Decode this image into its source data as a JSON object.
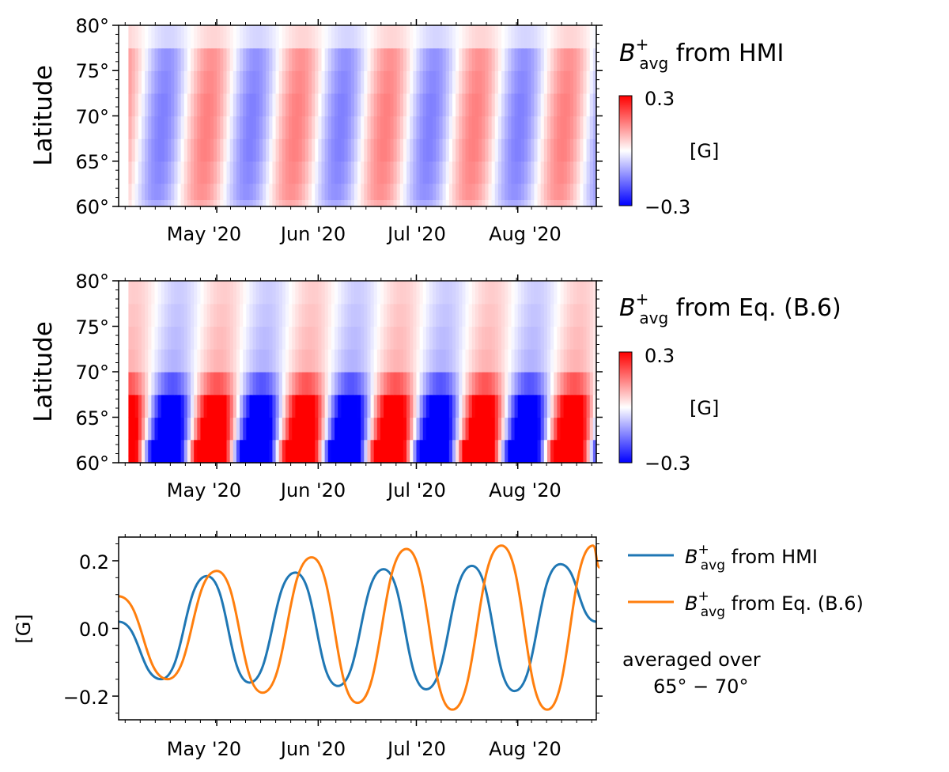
{
  "colors": {
    "hmi_line": "#1f77b4",
    "eq_line": "#ff7f0e",
    "cmap_negative": "#0000ff",
    "cmap_zero": "#ffffff",
    "cmap_positive": "#ff0000"
  },
  "chart_data": [
    {
      "type": "heatmap",
      "panel": "top",
      "title_symbol": "B",
      "title_sup": "+",
      "title_sub": "avg",
      "title_rest": " from HMI",
      "ylabel": "Latitude",
      "yticks": [
        "60°",
        "65°",
        "70°",
        "75°",
        "80°"
      ],
      "ylim": [
        60,
        80
      ],
      "xticks": [
        "May '20",
        "Jun '20",
        "Jul '20",
        "Aug '20"
      ],
      "xlim": [
        "2020-04-01",
        "2020-08-25"
      ],
      "colorbar": {
        "min": -0.3,
        "max": 0.3,
        "max_label": "0.3",
        "min_label": "−0.3",
        "unit": "[G]",
        "cmap": "bwr"
      },
      "lat_rows": [
        60.2,
        61.3,
        63.8,
        66.2,
        68.8,
        71.2,
        73.8,
        76.2,
        78.8
      ],
      "row_amplitude": [
        0.1,
        0.13,
        0.14,
        0.15,
        0.15,
        0.15,
        0.14,
        0.13,
        0.05
      ],
      "phase_shift_per_degree_days": 0.2,
      "period_days": 27.3,
      "first_minimum": "2020-04-12",
      "first_row_start": "2020-04-04"
    },
    {
      "type": "heatmap",
      "panel": "middle",
      "title_symbol": "B",
      "title_sup": "+",
      "title_sub": "avg",
      "title_rest": " from Eq. (B.6)",
      "ylabel": "Latitude",
      "yticks": [
        "60°",
        "65°",
        "70°",
        "75°",
        "80°"
      ],
      "ylim": [
        60,
        80
      ],
      "xticks": [
        "May '20",
        "Jun '20",
        "Jul '20",
        "Aug '20"
      ],
      "xlim": [
        "2020-04-01",
        "2020-08-25"
      ],
      "colorbar": {
        "min": -0.3,
        "max": 0.3,
        "max_label": "0.3",
        "min_label": "−0.3",
        "unit": "[G]",
        "cmap": "bwr"
      },
      "lat_rows": [
        60.2,
        61.3,
        63.8,
        66.2,
        68.8,
        71.2,
        73.8,
        76.2,
        78.8
      ],
      "row_amplitude": [
        0.6,
        0.6,
        0.45,
        0.38,
        0.2,
        0.09,
        0.08,
        0.07,
        0.06
      ],
      "row_lag_days": [
        0,
        0,
        1,
        1.5,
        2,
        2.5,
        3,
        3.5,
        4
      ],
      "period_days": 27.3,
      "first_minimum": "2020-04-15",
      "first_row_start": "2020-04-04"
    },
    {
      "type": "line",
      "panel": "bottom",
      "ylabel": "[G]",
      "yticks": [
        -0.2,
        0.0,
        0.2
      ],
      "ytick_labels": [
        "−0.2",
        "0.0",
        "0.2"
      ],
      "ylim": [
        -0.27,
        0.27
      ],
      "xticks": [
        "May '20",
        "Jun '20",
        "Jul '20",
        "Aug '20"
      ],
      "xlim": [
        "2020-04-01",
        "2020-08-25"
      ],
      "legend_position": "right",
      "series": [
        {
          "name_symbol": "B",
          "name_sup": "+",
          "name_sub": "avg",
          "name_rest": " from HMI",
          "x": [
            "2020-04-01",
            "2020-04-14",
            "2020-04-28",
            "2020-05-11",
            "2020-05-25",
            "2020-06-07",
            "2020-06-21",
            "2020-07-04",
            "2020-07-18",
            "2020-07-31",
            "2020-08-14",
            "2020-08-25"
          ],
          "y": [
            0.02,
            -0.15,
            0.155,
            -0.16,
            0.165,
            -0.17,
            0.175,
            -0.18,
            0.185,
            -0.185,
            0.19,
            0.02
          ]
        },
        {
          "name_symbol": "B",
          "name_sup": "+",
          "name_sub": "avg",
          "name_rest": " from Eq. (B.6)",
          "x": [
            "2020-04-01",
            "2020-04-16",
            "2020-05-01",
            "2020-05-15",
            "2020-05-30",
            "2020-06-13",
            "2020-06-28",
            "2020-07-12",
            "2020-07-27",
            "2020-08-10",
            "2020-08-24",
            "2020-08-26"
          ],
          "y": [
            0.095,
            -0.15,
            0.17,
            -0.19,
            0.21,
            -0.22,
            0.235,
            -0.24,
            0.245,
            -0.24,
            0.245,
            0.18
          ]
        }
      ],
      "annotation_line1": "averaged over",
      "annotation_line2": "65° − 70°"
    }
  ]
}
